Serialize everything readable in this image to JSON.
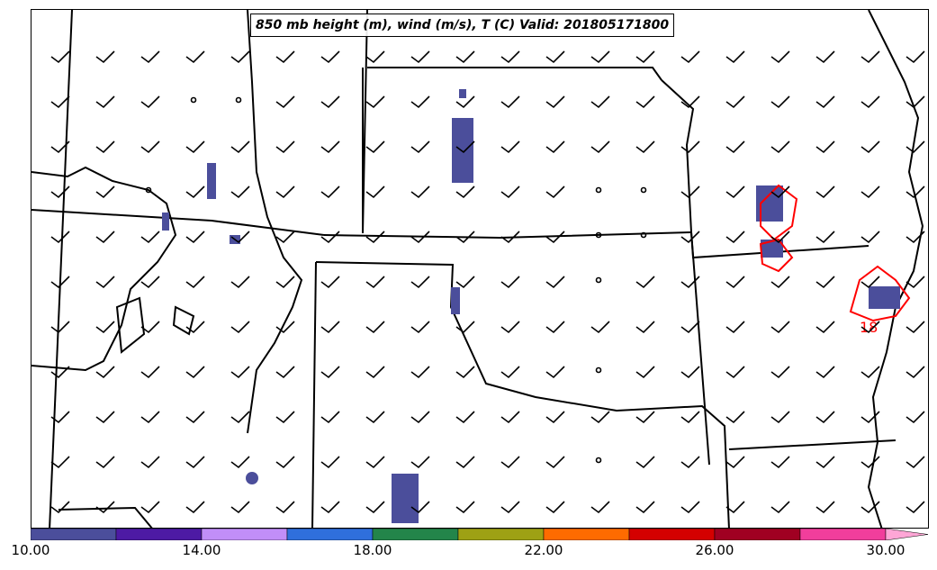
{
  "title": "850 mb height (m), wind (m/s), T (C) Valid: 201805171800",
  "contour_label": "18",
  "colorbar": {
    "ticks": [
      "10.00",
      "14.00",
      "18.00",
      "22.00",
      "26.00",
      "30.00"
    ],
    "colors": [
      "#4b4e9b",
      "#4d1aa4",
      "#c18ef8",
      "#2f6fdc",
      "#23854a",
      "#9ea114",
      "#fe6b00",
      "#d40000",
      "#a00022",
      "#f13e9c",
      "#ffa6d6"
    ]
  },
  "map": {
    "state_line_color": "#000000",
    "contour_color": "#ff0000",
    "precip_color": "#4b4e9b"
  }
}
